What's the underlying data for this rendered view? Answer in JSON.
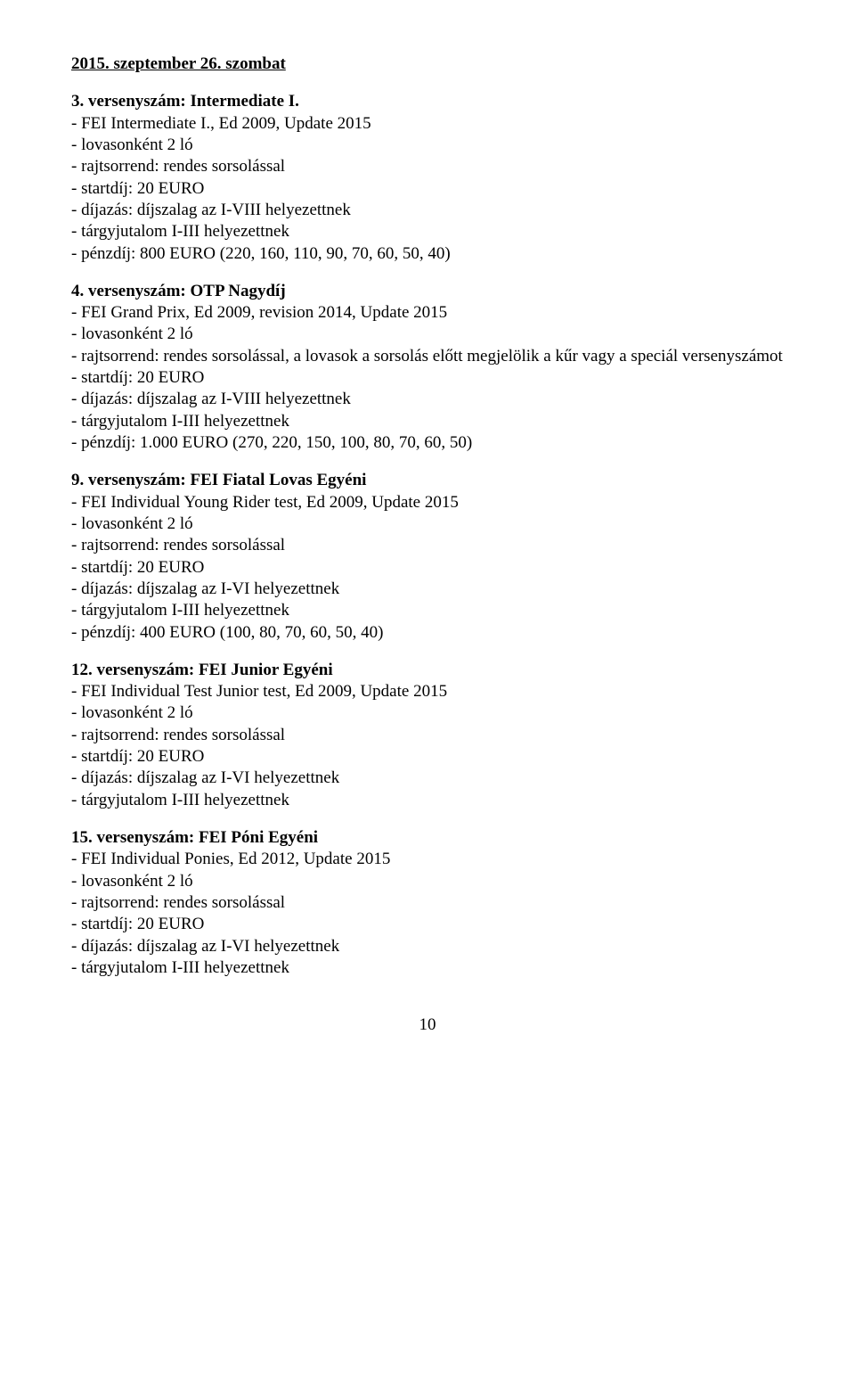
{
  "date_header": "2015. szeptember 26. szombat",
  "page_number": "10",
  "events": [
    {
      "title": "3. versenyszám: Intermediate I.",
      "lines": [
        "- FEI Intermediate I., Ed 2009, Update 2015",
        "- lovasonként 2 ló",
        "- rajtsorrend: rendes sorsolással",
        "- startdíj: 20 EURO",
        "- díjazás: díjszalag az I-VIII helyezettnek",
        "- tárgyjutalom I-III helyezettnek",
        "- pénzdíj: 800 EURO (220, 160, 110, 90, 70, 60, 50, 40)"
      ]
    },
    {
      "title": "4. versenyszám: OTP Nagydíj",
      "lines": [
        "- FEI Grand Prix, Ed 2009, revision 2014, Update 2015",
        "- lovasonként 2 ló",
        "- rajtsorrend: rendes sorsolással, a lovasok a sorsolás előtt megjelölik a kűr vagy a speciál versenyszámot",
        "- startdíj: 20 EURO",
        "- díjazás: díjszalag az I-VIII helyezettnek",
        "- tárgyjutalom I-III helyezettnek",
        "- pénzdíj: 1.000 EURO (270, 220, 150, 100, 80, 70, 60, 50)"
      ]
    },
    {
      "title": "9. versenyszám: FEI Fiatal Lovas Egyéni",
      "lines": [
        "- FEI Individual Young Rider test, Ed 2009, Update 2015",
        "- lovasonként 2 ló",
        "- rajtsorrend: rendes sorsolással",
        "- startdíj: 20 EURO",
        "- díjazás: díjszalag az I-VI helyezettnek",
        "- tárgyjutalom I-III helyezettnek",
        "- pénzdíj: 400 EURO (100, 80, 70, 60, 50, 40)"
      ]
    },
    {
      "title": "12. versenyszám: FEI Junior Egyéni",
      "lines": [
        "- FEI Individual Test Junior test, Ed 2009, Update 2015",
        "- lovasonként 2 ló",
        "- rajtsorrend: rendes sorsolással",
        "- startdíj: 20 EURO",
        "- díjazás: díjszalag az I-VI helyezettnek",
        "- tárgyjutalom I-III helyezettnek"
      ]
    },
    {
      "title": "15. versenyszám: FEI Póni Egyéni",
      "lines": [
        "- FEI Individual Ponies, Ed 2012, Update 2015",
        "- lovasonként 2 ló",
        "- rajtsorrend: rendes sorsolással",
        "- startdíj: 20 EURO",
        "- díjazás: díjszalag az I-VI helyezettnek",
        "- tárgyjutalom I-III helyezettnek"
      ]
    }
  ]
}
